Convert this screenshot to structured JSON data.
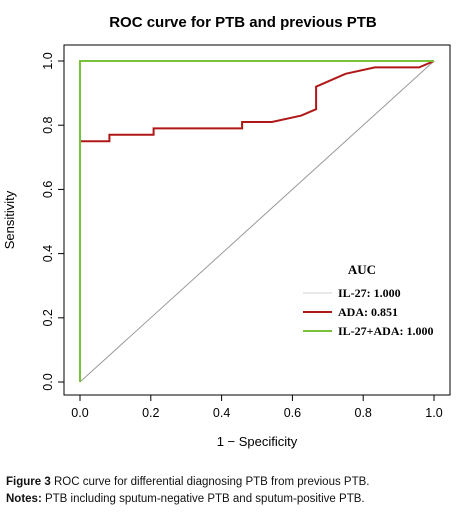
{
  "chart_data": {
    "type": "line",
    "title": "ROC curve for PTB and previous PTB",
    "xlabel": "1 − Specificity",
    "ylabel": "Sensitivity",
    "xlim": [
      0,
      1
    ],
    "ylim": [
      0,
      1
    ],
    "x_ticks": [
      "0.0",
      "0.2",
      "0.4",
      "0.6",
      "0.8",
      "1.0"
    ],
    "y_ticks": [
      "0.0",
      "0.2",
      "0.4",
      "0.6",
      "0.8",
      "1.0"
    ],
    "grid": false,
    "legend_title": "AUC",
    "legend_position": "bottom-right",
    "series": [
      {
        "name": "IL-27: 1.000",
        "color": "#e8e8e8",
        "x": [
          0,
          0,
          1
        ],
        "y": [
          0,
          1,
          1
        ]
      },
      {
        "name": "ADA: 0.851",
        "color": "#b01818",
        "x": [
          0,
          0,
          0.083,
          0.083,
          0.208,
          0.208,
          0.458,
          0.458,
          0.542,
          0.625,
          0.667,
          0.667,
          0.75,
          0.833,
          0.958,
          1.0
        ],
        "y": [
          0,
          0.75,
          0.75,
          0.77,
          0.77,
          0.79,
          0.79,
          0.81,
          0.81,
          0.83,
          0.85,
          0.92,
          0.96,
          0.98,
          0.98,
          1.0
        ]
      },
      {
        "name": "IL-27+ADA: 1.000",
        "color": "#77c23a",
        "x": [
          0,
          0,
          1
        ],
        "y": [
          0,
          1,
          1
        ]
      }
    ],
    "reference_line": {
      "x": [
        0,
        1
      ],
      "y": [
        0,
        1
      ],
      "color": "#999999"
    }
  },
  "caption": {
    "figure_label": "Figure 3",
    "figure_text": "ROC curve for differential diagnosing PTB from previous PTB.",
    "notes_label": "Notes:",
    "notes_text": "PTB including sputum-negative PTB and sputum-positive PTB."
  }
}
